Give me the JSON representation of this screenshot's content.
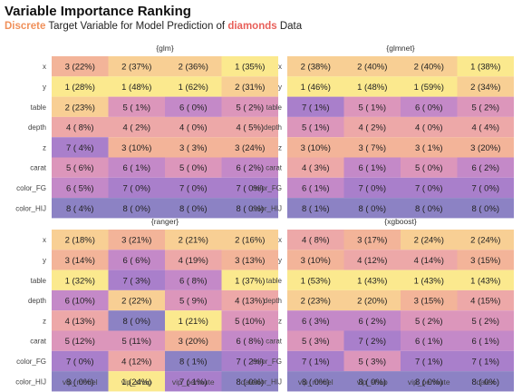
{
  "title": "Variable Importance Ranking",
  "subtitle": {
    "part1": "Discrete",
    "part2": " Target Variable for Model Prediction of ",
    "part3": "diamonds",
    "part4": " Data",
    "accent1": "#f0905a",
    "accent2": "#e8605a"
  },
  "palette": {
    "1": "#fbe98e",
    "2": "#f8cf94",
    "3": "#f3b499",
    "4": "#eda8a8",
    "5": "#dc96bb",
    "6": "#c489c8",
    "7": "#a97fcb",
    "8": "#8c82c4"
  },
  "chart_data": {
    "type": "heatmap",
    "columns": [
      "vip_model",
      "vip_shap",
      "vip_permute",
      "dalex"
    ],
    "rows": [
      "x",
      "y",
      "table",
      "depth",
      "z",
      "carat",
      "color_FG",
      "color_HIJ"
    ],
    "panels": [
      {
        "name": "{glm}",
        "cells": [
          [
            "3 (22%)",
            "2 (37%)",
            "2 (36%)",
            "1 (35%)"
          ],
          [
            "1 (28%)",
            "1 (48%)",
            "1 (62%)",
            "2 (31%)"
          ],
          [
            "2 (23%)",
            "5 ( 1%)",
            "6 ( 0%)",
            "5 ( 2%)"
          ],
          [
            "4 ( 8%)",
            "4 ( 2%)",
            "4 ( 0%)",
            "4 ( 5%)"
          ],
          [
            "7 ( 4%)",
            "3 (10%)",
            "3 ( 3%)",
            "3 (24%)"
          ],
          [
            "5 ( 6%)",
            "6 ( 1%)",
            "5 ( 0%)",
            "6 ( 2%)"
          ],
          [
            "6 ( 5%)",
            "7 ( 0%)",
            "7 ( 0%)",
            "7 ( 0%)"
          ],
          [
            "8 ( 4%)",
            "8 ( 0%)",
            "8 ( 0%)",
            "8 ( 0%)"
          ]
        ]
      },
      {
        "name": "{glmnet}",
        "cells": [
          [
            "2 (38%)",
            "2 (40%)",
            "2 (40%)",
            "1 (38%)"
          ],
          [
            "1 (46%)",
            "1 (48%)",
            "1 (59%)",
            "2 (34%)"
          ],
          [
            "7 ( 1%)",
            "5 ( 1%)",
            "6 ( 0%)",
            "5 ( 2%)"
          ],
          [
            "5 ( 1%)",
            "4 ( 2%)",
            "4 ( 0%)",
            "4 ( 4%)"
          ],
          [
            "3 (10%)",
            "3 ( 7%)",
            "3 ( 1%)",
            "3 (20%)"
          ],
          [
            "4 ( 3%)",
            "6 ( 1%)",
            "5 ( 0%)",
            "6 ( 2%)"
          ],
          [
            "6 ( 1%)",
            "7 ( 0%)",
            "7 ( 0%)",
            "7 ( 0%)"
          ],
          [
            "8 ( 1%)",
            "8 ( 0%)",
            "8 ( 0%)",
            "8 ( 0%)"
          ]
        ]
      },
      {
        "name": "{ranger}",
        "cells": [
          [
            "2 (18%)",
            "3 (21%)",
            "2 (21%)",
            "2 (16%)"
          ],
          [
            "3 (14%)",
            "6 ( 6%)",
            "4 (19%)",
            "3 (13%)"
          ],
          [
            "1 (32%)",
            "7 ( 3%)",
            "6 ( 8%)",
            "1 (37%)"
          ],
          [
            "6 (10%)",
            "2 (22%)",
            "5 ( 9%)",
            "4 (13%)"
          ],
          [
            "4 (13%)",
            "8 ( 0%)",
            "1 (21%)",
            "5 (10%)"
          ],
          [
            "5 (12%)",
            "5 (11%)",
            "3 (20%)",
            "6 ( 8%)"
          ],
          [
            "7 ( 0%)",
            "4 (12%)",
            "8 ( 1%)",
            "7 ( 2%)"
          ],
          [
            "8 ( 0%)",
            "1 (24%)",
            "7 ( 1%)",
            "8 ( 0%)"
          ]
        ]
      },
      {
        "name": "{xgboost}",
        "cells": [
          [
            "4 ( 8%)",
            "3 (17%)",
            "2 (24%)",
            "2 (24%)"
          ],
          [
            "3 (10%)",
            "4 (12%)",
            "4 (14%)",
            "3 (15%)"
          ],
          [
            "1 (53%)",
            "1 (43%)",
            "1 (43%)",
            "1 (43%)"
          ],
          [
            "2 (23%)",
            "2 (20%)",
            "3 (15%)",
            "4 (15%)"
          ],
          [
            "6 ( 3%)",
            "6 ( 2%)",
            "5 ( 2%)",
            "5 ( 2%)"
          ],
          [
            "5 ( 3%)",
            "7 ( 2%)",
            "6 ( 1%)",
            "6 ( 1%)"
          ],
          [
            "7 ( 1%)",
            "5 ( 3%)",
            "7 ( 1%)",
            "7 ( 1%)"
          ],
          [
            "8 ( 0%)",
            "8 ( 0%)",
            "8 ( 0%)",
            "8 ( 0%)"
          ]
        ]
      }
    ]
  }
}
